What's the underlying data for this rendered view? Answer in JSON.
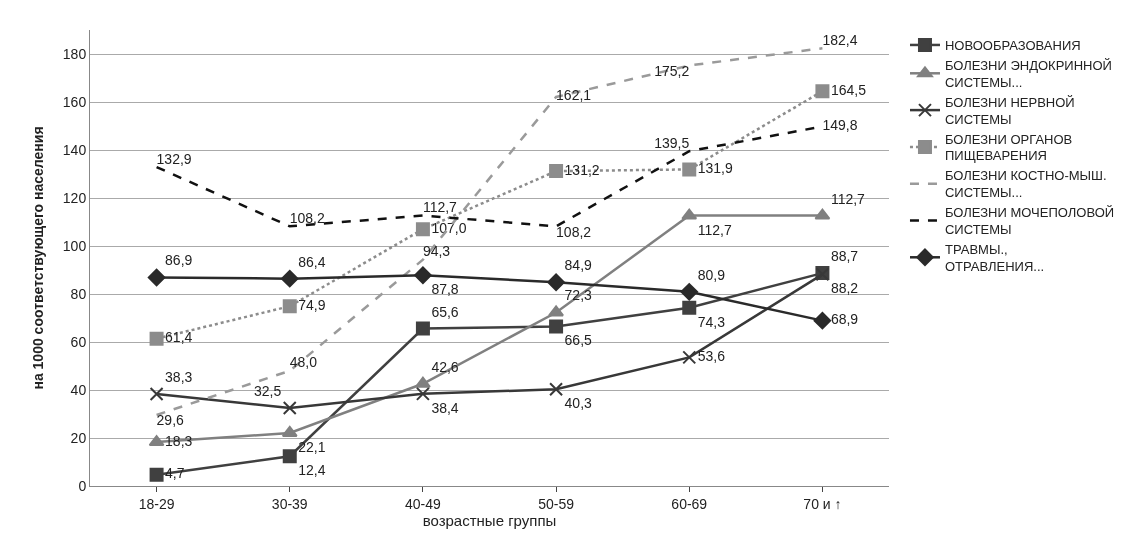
{
  "chart_data": {
    "type": "line",
    "xlabel": "возрастные группы",
    "ylabel": "на 1000 соответствующего населения",
    "categories": [
      "18-29",
      "30-39",
      "40-49",
      "50-59",
      "60-69",
      "70 и ↑"
    ],
    "ylim": [
      0,
      190
    ],
    "yticks": [
      0,
      20,
      40,
      60,
      80,
      100,
      120,
      140,
      160,
      180
    ],
    "grid": "y",
    "legend": "right",
    "series": [
      {
        "name": "НОВООБРАЗОВАНИЯ",
        "color": "#404040",
        "marker": "square",
        "line_style": "solid",
        "values": [
          4.7,
          12.4,
          65.6,
          66.5,
          74.3,
          88.7
        ],
        "value_labels": [
          "4,7",
          "12,4",
          "65,6",
          "66,5",
          "74,3",
          "88,7"
        ]
      },
      {
        "name": "БОЛЕЗНИ ЭНДОКРИННОЙ СИСТЕМЫ...",
        "color": "#808080",
        "marker": "triangle",
        "line_style": "solid",
        "values": [
          18.3,
          22.1,
          42.6,
          72.3,
          112.7,
          112.7
        ],
        "value_labels": [
          "18,3",
          "22,1",
          "42,6",
          "72,3",
          "112,7",
          "112,7"
        ]
      },
      {
        "name": "БОЛЕЗНИ НЕРВНОЙ СИСТЕМЫ",
        "color": "#383838",
        "marker": "cross",
        "line_style": "solid",
        "values": [
          38.3,
          32.5,
          38.4,
          40.3,
          53.6,
          88.2
        ],
        "value_labels": [
          "38,3",
          "32,5",
          "38,4",
          "40,3",
          "53,6",
          "88,2"
        ]
      },
      {
        "name": "БОЛЕЗНИ ОРГАНОВ ПИЩЕВАРЕНИЯ",
        "color": "#8c8c8c",
        "marker": "square",
        "line_style": "dotted",
        "values": [
          61.4,
          74.9,
          107.0,
          131.2,
          131.9,
          164.5
        ],
        "value_labels": [
          "61,4",
          "74,9",
          "107,0",
          "131,2",
          "131,9",
          "164,5"
        ]
      },
      {
        "name": "БОЛЕЗНИ КОСТНО-МЫШ. СИСТЕМЫ...",
        "color": "#9a9a9a",
        "marker": "none",
        "line_style": "dashed",
        "values": [
          29.6,
          48.0,
          94.3,
          162.1,
          175.2,
          182.4
        ],
        "value_labels": [
          "29,6",
          "48,0",
          "94,3",
          "162,1",
          "175,2",
          "182,4"
        ]
      },
      {
        "name": "БОЛЕЗНИ МОЧЕПОЛОВОЙ СИСТЕМЫ",
        "color": "#111111",
        "marker": "none",
        "line_style": "dashed",
        "values": [
          132.9,
          108.2,
          112.7,
          108.2,
          139.5,
          149.8
        ],
        "value_labels": [
          "132,9",
          "108,2",
          "112,7",
          "108,2",
          "139,5",
          "149,8"
        ]
      },
      {
        "name": "ТРАВМЫ., ОТРАВЛЕНИЯ...",
        "color": "#2a2a2a",
        "marker": "diamond",
        "line_style": "solid",
        "values": [
          86.9,
          86.4,
          87.8,
          84.9,
          80.9,
          68.9
        ],
        "value_labels": [
          "86,9",
          "86,4",
          "87,8",
          "84,9",
          "80,9",
          "68,9"
        ]
      }
    ]
  }
}
